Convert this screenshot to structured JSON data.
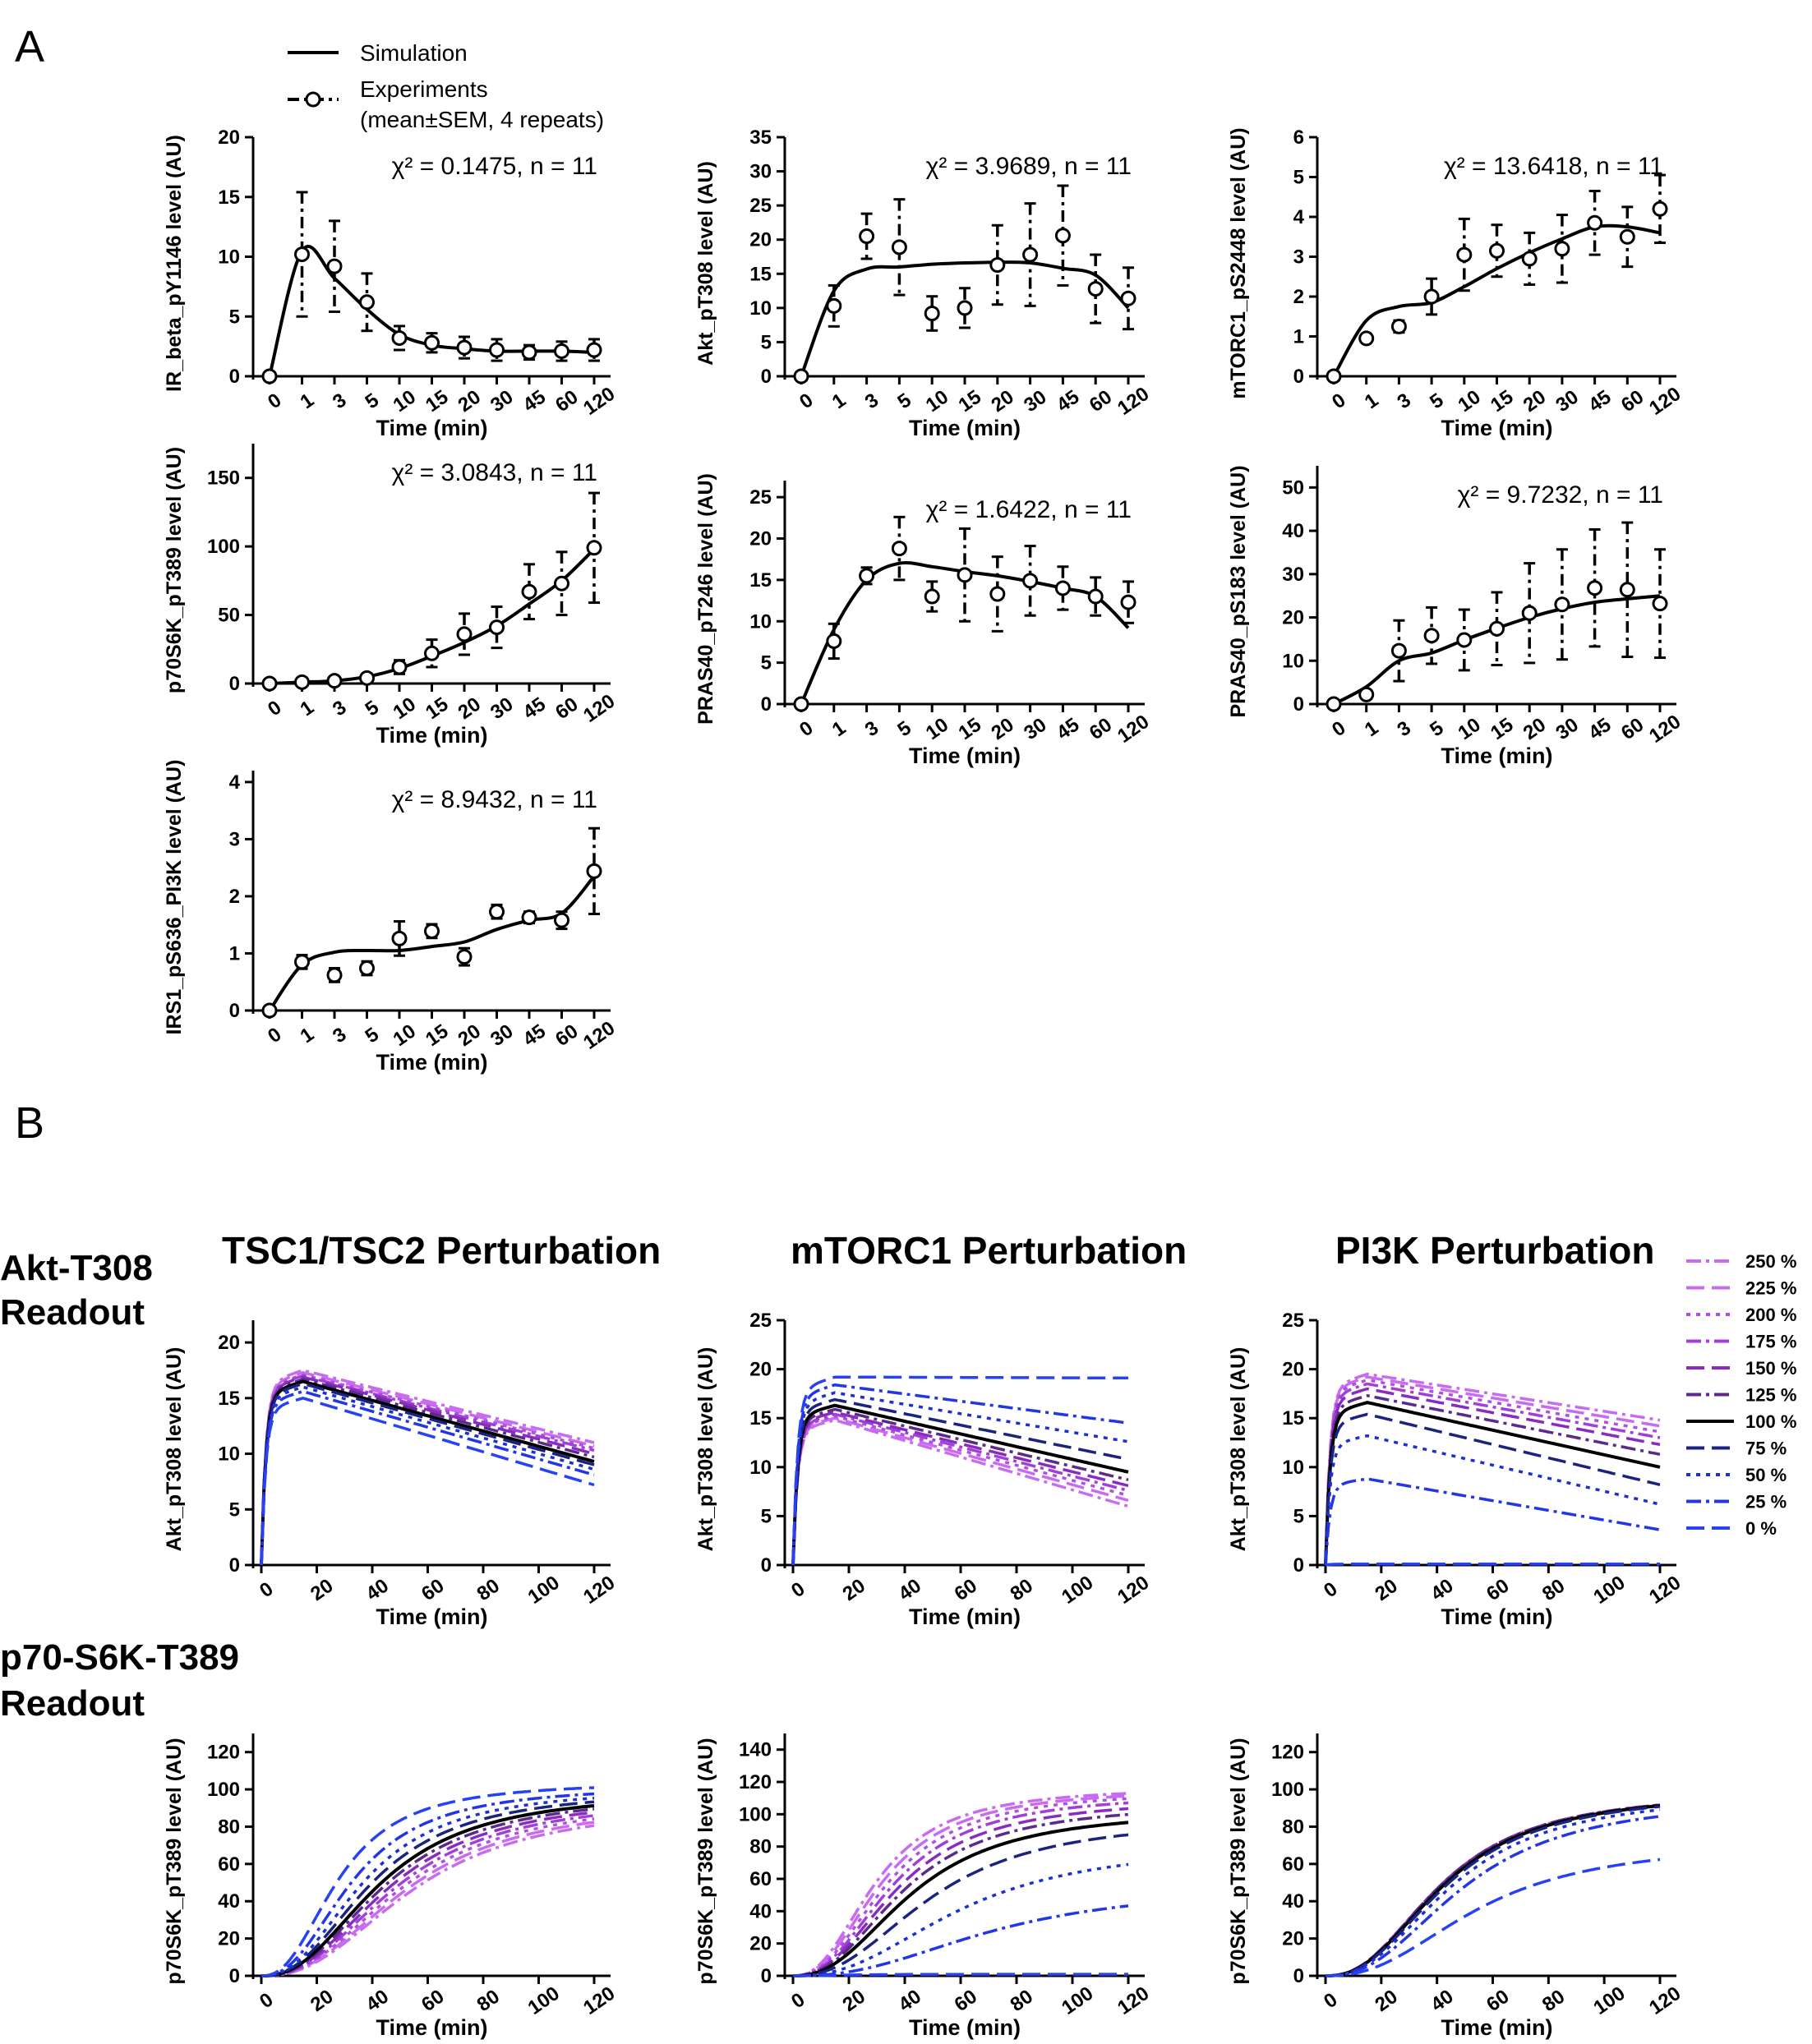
{
  "figure": {
    "panel_a_label": "A",
    "panel_b_label": "B",
    "legend_a": {
      "simulation": "Simulation",
      "experiments_line1": "Experiments",
      "experiments_line2": "(mean±SEM, 4 repeats)"
    },
    "row_labels": [
      {
        "line1": "Akt-T308",
        "line2": "Readout"
      },
      {
        "line1": "p70-S6K-T389",
        "line2": "Readout"
      }
    ],
    "column_titles": [
      "TSC1/TSC2  Perturbation",
      "mTORC1 Perturbation",
      "PI3K Perturbation"
    ],
    "legend_b": {
      "title": "",
      "entries": [
        {
          "label": "250 %",
          "color": "#c86bf0",
          "dash": "dashdot"
        },
        {
          "label": "225 %",
          "color": "#c86bf0",
          "dash": "longdash"
        },
        {
          "label": "200 %",
          "color": "#b04fe0",
          "dash": "dotted"
        },
        {
          "label": "175 %",
          "color": "#a23fd8",
          "dash": "dashdot"
        },
        {
          "label": "150 %",
          "color": "#8a2bc0",
          "dash": "longdash"
        },
        {
          "label": "125 %",
          "color": "#5c2a8a",
          "dash": "dashdot"
        },
        {
          "label": "100 %",
          "color": "#000000",
          "dash": "solid"
        },
        {
          "label": "75 %",
          "color": "#1a237e",
          "dash": "longdash"
        },
        {
          "label": "50 %",
          "color": "#1c2fd0",
          "dash": "dotted"
        },
        {
          "label": "25 %",
          "color": "#2236e6",
          "dash": "dashdot"
        },
        {
          "label": "0 %",
          "color": "#2741f5",
          "dash": "longdash"
        }
      ]
    }
  },
  "chart_data": [
    {
      "panel": "A",
      "type": "line",
      "ylabel": "IR_beta_pY1146 level (AU)",
      "xlabel": "Time (min)",
      "annotation": "χ² = 0.1475, n = 11",
      "categories": [
        "0",
        "1",
        "3",
        "5",
        "10",
        "15",
        "20",
        "30",
        "45",
        "60",
        "120"
      ],
      "ylim": [
        0,
        20
      ],
      "yticks": [
        0,
        5,
        10,
        15,
        20
      ],
      "experiments": {
        "mean": [
          0,
          10.2,
          9.2,
          6.2,
          3.2,
          2.8,
          2.4,
          2.2,
          2.0,
          2.1,
          2.2
        ],
        "sem": [
          0,
          5.2,
          3.8,
          2.4,
          1.0,
          0.8,
          0.9,
          0.9,
          0.6,
          0.8,
          0.9
        ]
      },
      "simulation": [
        0,
        10.5,
        8.2,
        5.6,
        3.5,
        2.6,
        2.3,
        2.1,
        2.1,
        2.1,
        2.0
      ]
    },
    {
      "panel": "A",
      "type": "line",
      "ylabel": "Akt_pT308 level (AU)",
      "xlabel": "Time (min)",
      "annotation": "χ² = 3.9689, n = 11",
      "categories": [
        "0",
        "1",
        "3",
        "5",
        "10",
        "15",
        "20",
        "30",
        "45",
        "60",
        "120"
      ],
      "ylim": [
        0,
        35
      ],
      "yticks": [
        0,
        5,
        10,
        15,
        20,
        25,
        30,
        35
      ],
      "experiments": {
        "mean": [
          0,
          10.3,
          20.5,
          18.9,
          9.2,
          10.0,
          16.3,
          17.8,
          20.6,
          12.8,
          11.4
        ],
        "sem": [
          0,
          3.0,
          3.3,
          7.0,
          2.5,
          2.9,
          5.8,
          7.5,
          7.3,
          5.0,
          4.5
        ]
      },
      "simulation": [
        0,
        12.5,
        15.7,
        16.0,
        16.4,
        16.6,
        16.7,
        16.6,
        15.8,
        14.8,
        10.0
      ]
    },
    {
      "panel": "A",
      "type": "line",
      "ylabel": "mTORC1_pS2448 level (AU)",
      "xlabel": "Time (min)",
      "annotation": "χ² = 13.6418, n = 11",
      "categories": [
        "0",
        "1",
        "3",
        "5",
        "10",
        "15",
        "20",
        "30",
        "45",
        "60",
        "120"
      ],
      "ylim": [
        0,
        6
      ],
      "yticks": [
        0,
        1,
        2,
        3,
        4,
        5,
        6
      ],
      "experiments": {
        "mean": [
          0,
          0.95,
          1.25,
          2.0,
          3.05,
          3.15,
          2.95,
          3.2,
          3.85,
          3.5,
          4.2
        ],
        "sem": [
          0,
          0.08,
          0.15,
          0.45,
          0.9,
          0.65,
          0.65,
          0.85,
          0.8,
          0.75,
          0.85
        ]
      },
      "simulation": [
        0,
        1.4,
        1.75,
        1.85,
        2.25,
        2.7,
        3.1,
        3.45,
        3.75,
        3.75,
        3.6
      ]
    },
    {
      "panel": "A",
      "type": "line",
      "ylabel": "p70S6K_pT389 level (AU)",
      "xlabel": "Time (min)",
      "annotation": "χ² = 3.0843, n = 11",
      "categories": [
        "0",
        "1",
        "3",
        "5",
        "10",
        "15",
        "20",
        "30",
        "45",
        "60",
        "120"
      ],
      "ylim": [
        0,
        175
      ],
      "yticks": [
        0,
        50,
        100,
        150
      ],
      "experiments": {
        "mean": [
          0,
          1,
          2,
          4,
          12,
          22,
          36,
          41,
          67,
          73,
          99
        ],
        "sem": [
          0,
          1,
          1,
          2,
          5,
          10,
          15,
          15,
          20,
          23,
          40
        ]
      },
      "simulation": [
        0,
        1,
        2,
        5,
        11,
        20,
        30,
        42,
        58,
        75,
        98
      ]
    },
    {
      "panel": "A",
      "type": "line",
      "ylabel": "PRAS40_pT246 level (AU)",
      "xlabel": "Time (min)",
      "annotation": "χ² = 1.6422, n = 11",
      "categories": [
        "0",
        "1",
        "3",
        "5",
        "10",
        "15",
        "20",
        "30",
        "45",
        "60",
        "120"
      ],
      "ylim": [
        0,
        27
      ],
      "yticks": [
        0,
        5,
        10,
        15,
        20,
        25
      ],
      "experiments": {
        "mean": [
          0,
          7.6,
          15.5,
          18.8,
          13.0,
          15.6,
          13.3,
          14.9,
          14.0,
          13.0,
          12.3
        ],
        "sem": [
          0,
          2.1,
          1.0,
          3.8,
          1.8,
          5.6,
          4.5,
          4.2,
          2.6,
          2.3,
          2.5
        ]
      },
      "simulation": [
        0,
        9.0,
        15.0,
        17.0,
        16.6,
        16.0,
        15.5,
        14.8,
        14.0,
        13.0,
        9.2
      ]
    },
    {
      "panel": "A",
      "type": "line",
      "ylabel": "PRAS40_pS183 level (AU)",
      "xlabel": "Time (min)",
      "annotation": "χ² = 9.7232, n = 11",
      "categories": [
        "0",
        "1",
        "3",
        "5",
        "10",
        "15",
        "20",
        "30",
        "45",
        "60",
        "120"
      ],
      "ylim": [
        0,
        55
      ],
      "yticks": [
        0,
        10,
        20,
        30,
        40,
        50
      ],
      "experiments": {
        "mean": [
          0,
          2.2,
          12.3,
          15.8,
          14.8,
          17.4,
          21.0,
          23.0,
          26.8,
          26.4,
          23.2
        ],
        "sem": [
          0,
          0.5,
          7.0,
          6.5,
          7.0,
          8.4,
          11.5,
          12.7,
          13.5,
          15.5,
          12.5
        ]
      },
      "simulation": [
        0,
        4.0,
        10.0,
        11.8,
        14.8,
        17.5,
        20.0,
        22.0,
        23.5,
        24.3,
        25.0
      ]
    },
    {
      "panel": "A",
      "type": "line",
      "ylabel": "IRS1_pS636_PI3K level (AU)",
      "xlabel": "Time (min)",
      "annotation": "χ² = 8.9432, n = 11",
      "categories": [
        "0",
        "1",
        "3",
        "5",
        "10",
        "15",
        "20",
        "30",
        "45",
        "60",
        "120"
      ],
      "ylim": [
        0,
        4.2
      ],
      "yticks": [
        0,
        1,
        2,
        3,
        4
      ],
      "experiments": {
        "mean": [
          0,
          0.85,
          0.62,
          0.74,
          1.26,
          1.39,
          0.94,
          1.73,
          1.63,
          1.58,
          2.44
        ],
        "sem": [
          0,
          0.12,
          0.12,
          0.12,
          0.3,
          0.12,
          0.15,
          0.12,
          0.1,
          0.15,
          0.75
        ]
      },
      "simulation": [
        0,
        0.8,
        1.02,
        1.05,
        1.05,
        1.12,
        1.2,
        1.42,
        1.58,
        1.7,
        2.35
      ]
    },
    {
      "panel": "B",
      "type": "line",
      "perturbation": "TSC1/TSC2",
      "readout": "Akt-T308",
      "ylabel": "Akt_pT308 level (AU)",
      "xlabel": "Time (min)",
      "xlim": [
        0,
        120
      ],
      "xticks": [
        0,
        20,
        40,
        60,
        80,
        100,
        120
      ],
      "ylim": [
        0,
        22
      ],
      "yticks": [
        0,
        5,
        10,
        15,
        20
      ],
      "model": "rise",
      "series": [
        {
          "name": "250 %",
          "peak": 17.5,
          "end": 11.0
        },
        {
          "name": "225 %",
          "peak": 17.3,
          "end": 10.7
        },
        {
          "name": "200 %",
          "peak": 17.1,
          "end": 10.5
        },
        {
          "name": "175 %",
          "peak": 17.0,
          "end": 10.3
        },
        {
          "name": "150 %",
          "peak": 16.9,
          "end": 10.0
        },
        {
          "name": "125 %",
          "peak": 16.7,
          "end": 9.7
        },
        {
          "name": "100 %",
          "peak": 16.5,
          "end": 9.3
        },
        {
          "name": "75 %",
          "peak": 16.3,
          "end": 9.0
        },
        {
          "name": "50 %",
          "peak": 16.0,
          "end": 8.6
        },
        {
          "name": "25 %",
          "peak": 15.6,
          "end": 8.1
        },
        {
          "name": "0 %",
          "peak": 15.0,
          "end": 7.2
        }
      ]
    },
    {
      "panel": "B",
      "type": "line",
      "perturbation": "mTORC1",
      "readout": "Akt-T308",
      "ylabel": "Akt_pT308 level (AU)",
      "xlabel": "Time (min)",
      "xlim": [
        0,
        120
      ],
      "xticks": [
        0,
        20,
        40,
        60,
        80,
        100,
        120
      ],
      "ylim": [
        0,
        25
      ],
      "yticks": [
        0,
        5,
        10,
        15,
        20,
        25
      ],
      "model": "rise",
      "series": [
        {
          "name": "250 %",
          "peak": 14.8,
          "end": 6.0
        },
        {
          "name": "225 %",
          "peak": 15.0,
          "end": 6.6
        },
        {
          "name": "200 %",
          "peak": 15.2,
          "end": 7.1
        },
        {
          "name": "175 %",
          "peak": 15.4,
          "end": 7.6
        },
        {
          "name": "150 %",
          "peak": 15.6,
          "end": 8.1
        },
        {
          "name": "125 %",
          "peak": 15.9,
          "end": 8.7
        },
        {
          "name": "100 %",
          "peak": 16.3,
          "end": 9.5
        },
        {
          "name": "75 %",
          "peak": 16.9,
          "end": 10.8
        },
        {
          "name": "50 %",
          "peak": 17.6,
          "end": 12.6
        },
        {
          "name": "25 %",
          "peak": 18.4,
          "end": 14.5
        },
        {
          "name": "0 %",
          "peak": 19.2,
          "end": 19.1
        }
      ]
    },
    {
      "panel": "B",
      "type": "line",
      "perturbation": "PI3K",
      "readout": "Akt-T308",
      "ylabel": "Akt_pT308 level (AU)",
      "xlabel": "Time (min)",
      "xlim": [
        0,
        120
      ],
      "xticks": [
        0,
        20,
        40,
        60,
        80,
        100,
        120
      ],
      "ylim": [
        0,
        25
      ],
      "yticks": [
        0,
        5,
        10,
        15,
        20,
        25
      ],
      "model": "rise",
      "series": [
        {
          "name": "250 %",
          "peak": 19.5,
          "end": 14.8
        },
        {
          "name": "225 %",
          "peak": 19.2,
          "end": 14.2
        },
        {
          "name": "200 %",
          "peak": 18.9,
          "end": 13.6
        },
        {
          "name": "175 %",
          "peak": 18.5,
          "end": 13.0
        },
        {
          "name": "150 %",
          "peak": 18.0,
          "end": 12.3
        },
        {
          "name": "125 %",
          "peak": 17.3,
          "end": 11.3
        },
        {
          "name": "100 %",
          "peak": 16.6,
          "end": 10.0
        },
        {
          "name": "75 %",
          "peak": 15.4,
          "end": 8.2
        },
        {
          "name": "50 %",
          "peak": 13.2,
          "end": 6.2
        },
        {
          "name": "25 %",
          "peak": 8.8,
          "end": 3.6
        },
        {
          "name": "0 %",
          "peak": 0.1,
          "end": 0.1
        }
      ]
    },
    {
      "panel": "B",
      "type": "line",
      "perturbation": "TSC1/TSC2",
      "readout": "p70-S6K-T389",
      "ylabel": "p70S6K_pT389 level (AU)",
      "xlabel": "Time (min)",
      "xlim": [
        0,
        120
      ],
      "xticks": [
        0,
        20,
        40,
        60,
        80,
        100,
        120
      ],
      "ylim": [
        0,
        130
      ],
      "yticks": [
        0,
        20,
        40,
        60,
        80,
        100,
        120
      ],
      "model": "sat",
      "series": [
        {
          "name": "250 %",
          "vmax": 93,
          "t50": 55
        },
        {
          "name": "225 %",
          "vmax": 94,
          "t50": 53
        },
        {
          "name": "200 %",
          "vmax": 95,
          "t50": 51
        },
        {
          "name": "175 %",
          "vmax": 96,
          "t50": 49
        },
        {
          "name": "150 %",
          "vmax": 97,
          "t50": 47
        },
        {
          "name": "125 %",
          "vmax": 98,
          "t50": 45
        },
        {
          "name": "100 %",
          "vmax": 99,
          "t50": 43
        },
        {
          "name": "75 %",
          "vmax": 100,
          "t50": 40
        },
        {
          "name": "50 %",
          "vmax": 101,
          "t50": 37
        },
        {
          "name": "25 %",
          "vmax": 102,
          "t50": 33
        },
        {
          "name": "0 %",
          "vmax": 104,
          "t50": 28
        }
      ]
    },
    {
      "panel": "B",
      "type": "line",
      "perturbation": "mTORC1",
      "readout": "p70-S6K-T389",
      "ylabel": "p70S6K_pT389 level (AU)",
      "xlabel": "Time (min)",
      "xlim": [
        0,
        120
      ],
      "xticks": [
        0,
        20,
        40,
        60,
        80,
        100,
        120
      ],
      "ylim": [
        0,
        150
      ],
      "yticks": [
        0,
        20,
        40,
        60,
        80,
        100,
        120,
        140
      ],
      "model": "sat",
      "series": [
        {
          "name": "250 %",
          "vmax": 117,
          "t50": 30
        },
        {
          "name": "225 %",
          "vmax": 116,
          "t50": 32
        },
        {
          "name": "200 %",
          "vmax": 115,
          "t50": 34
        },
        {
          "name": "175 %",
          "vmax": 113,
          "t50": 36
        },
        {
          "name": "150 %",
          "vmax": 110,
          "t50": 38
        },
        {
          "name": "125 %",
          "vmax": 107,
          "t50": 40
        },
        {
          "name": "100 %",
          "vmax": 103,
          "t50": 43
        },
        {
          "name": "75 %",
          "vmax": 98,
          "t50": 50
        },
        {
          "name": "50 %",
          "vmax": 82,
          "t50": 60
        },
        {
          "name": "25 %",
          "vmax": 56,
          "t50": 72
        },
        {
          "name": "0 %",
          "vmax": 1,
          "t50": 20
        }
      ]
    },
    {
      "panel": "B",
      "type": "line",
      "perturbation": "PI3K",
      "readout": "p70-S6K-T389",
      "ylabel": "p70S6K_pT389 level (AU)",
      "xlabel": "Time (min)",
      "xlim": [
        0,
        120
      ],
      "xticks": [
        0,
        20,
        40,
        60,
        80,
        100,
        120
      ],
      "ylim": [
        0,
        130
      ],
      "yticks": [
        0,
        20,
        40,
        60,
        80,
        100,
        120
      ],
      "model": "sat",
      "series": [
        {
          "name": "250 %",
          "vmax": 99,
          "t50": 42
        },
        {
          "name": "225 %",
          "vmax": 99,
          "t50": 42
        },
        {
          "name": "200 %",
          "vmax": 99,
          "t50": 42
        },
        {
          "name": "175 %",
          "vmax": 99,
          "t50": 42
        },
        {
          "name": "150 %",
          "vmax": 99,
          "t50": 42
        },
        {
          "name": "125 %",
          "vmax": 99,
          "t50": 42
        },
        {
          "name": "100 %",
          "vmax": 99,
          "t50": 43
        },
        {
          "name": "75 %",
          "vmax": 99,
          "t50": 44
        },
        {
          "name": "50 %",
          "vmax": 98,
          "t50": 46
        },
        {
          "name": "25 %",
          "vmax": 96,
          "t50": 50
        },
        {
          "name": "0 %",
          "vmax": 72,
          "t50": 55
        }
      ]
    }
  ]
}
